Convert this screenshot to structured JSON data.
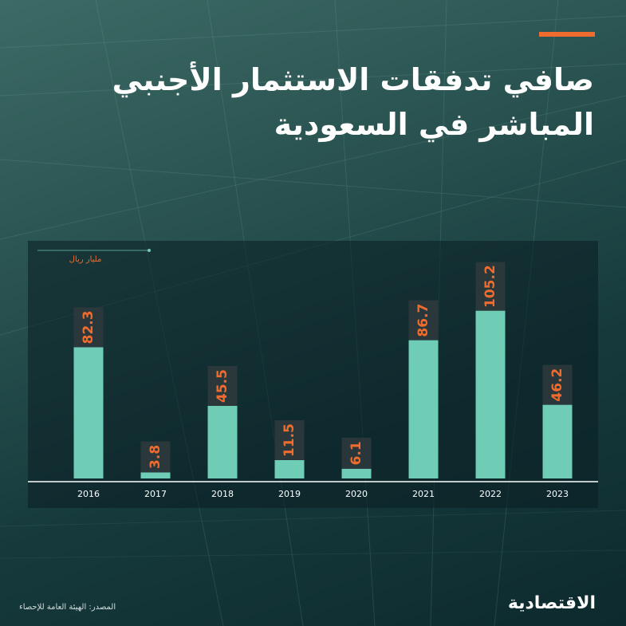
{
  "header": {
    "title_line1": "صافي تدفقات الاستثمار الأجنبي",
    "title_line2": "المباشر في السعودية"
  },
  "colors": {
    "accent": "#ef6c2e",
    "bar": "#6fcdb6",
    "label_box": "#2f3a3d",
    "axis": "#ffffff",
    "tick_text": "#ffffff"
  },
  "chart_data": {
    "type": "bar",
    "categories": [
      "2016",
      "2017",
      "2018",
      "2019",
      "2020",
      "2021",
      "2022",
      "2023"
    ],
    "values": [
      82.3,
      3.8,
      45.5,
      11.5,
      6.1,
      86.7,
      105.2,
      46.2
    ],
    "value_labels": [
      "82.3",
      "3.8",
      "45.5",
      "11.5",
      "6.1",
      "86.7",
      "105.2",
      "46.2"
    ],
    "unit_label": "مليار ريال",
    "ylim": [
      0,
      120
    ],
    "grid": false,
    "legend": "none"
  },
  "footer": {
    "source": "المصدر: الهيئة العامة للإحصاء",
    "logo": "الاقتصادية"
  }
}
